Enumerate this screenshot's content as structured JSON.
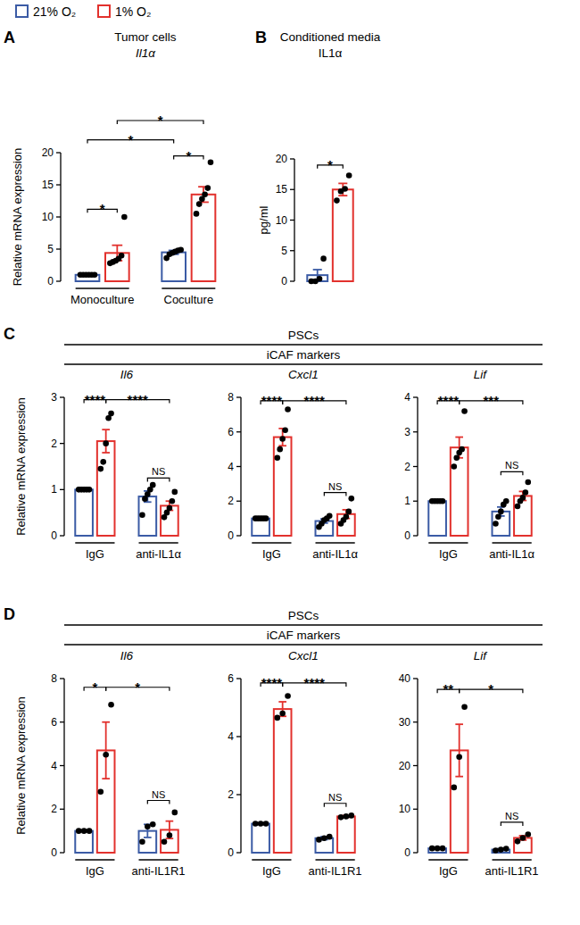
{
  "legend": [
    {
      "name": "21% O₂",
      "color": "#3b5ba5"
    },
    {
      "name": "1% O₂",
      "color": "#e2312d"
    }
  ],
  "panels": [
    {
      "letter": "A",
      "headings": [
        "Tumor cells"
      ]
    },
    {
      "letter": "B",
      "headings": [
        "Conditioned media"
      ]
    },
    {
      "letter": "C",
      "headings": [
        "PSCs",
        "iCAF markers"
      ]
    },
    {
      "letter": "D",
      "headings": [
        "PSCs",
        "iCAF markers"
      ]
    }
  ],
  "chart_data": [
    {
      "type": "bar",
      "title": "Il1α",
      "y_label": "Relative mRNA expression",
      "categories": [
        "Monoculture",
        "Coculture"
      ],
      "ylim": [
        0,
        20
      ],
      "yticks": [
        0,
        5,
        10,
        15,
        20
      ],
      "series": [
        {
          "color": "#3b5ba5",
          "values": [
            1.0,
            4.5
          ],
          "errors": [
            0,
            0.3
          ],
          "points": [
            [
              1,
              1,
              1,
              1,
              1,
              1
            ],
            [
              3.6,
              4.2,
              4.4,
              4.6,
              4.8,
              4.9
            ]
          ]
        },
        {
          "color": "#e2312d",
          "values": [
            4.4,
            13.5
          ],
          "errors": [
            1.2,
            1.2
          ],
          "points": [
            [
              2.8,
              3.0,
              3.2,
              3.5,
              4.0,
              10.0
            ],
            [
              10.5,
              12.0,
              12.8,
              13.5,
              14.5,
              18.5
            ]
          ]
        }
      ],
      "annotations": [
        {
          "text": "*",
          "from": [
            0,
            0
          ],
          "to": [
            0,
            1
          ],
          "y": 11.2
        },
        {
          "text": "*",
          "from": [
            1,
            0
          ],
          "to": [
            1,
            1
          ],
          "y": 19.5
        },
        {
          "text": "*",
          "from": [
            0,
            0
          ],
          "to": [
            1,
            0
          ],
          "y": 22
        },
        {
          "text": "*",
          "from": [
            0,
            1
          ],
          "to": [
            1,
            1
          ],
          "y": 25
        }
      ]
    },
    {
      "type": "bar",
      "title": "IL1α",
      "y_label": "pg/ml",
      "categories": [
        null
      ],
      "ylim": [
        0,
        20
      ],
      "yticks": [
        0,
        5,
        10,
        15,
        20
      ],
      "series": [
        {
          "color": "#3b5ba5",
          "values": [
            1.0
          ],
          "errors": [
            0.9
          ],
          "points": [
            [
              0,
              0,
              0.4,
              3.7
            ]
          ]
        },
        {
          "color": "#e2312d",
          "values": [
            15.0
          ],
          "errors": [
            1.0
          ],
          "points": [
            [
              13.2,
              14.7,
              15.1,
              17.3
            ]
          ]
        }
      ],
      "annotations": [
        {
          "text": "*",
          "from": [
            0,
            0
          ],
          "to": [
            0,
            1
          ],
          "y": 19
        }
      ]
    },
    {
      "type": "bar",
      "title": "Il6",
      "y_label": "Relative mRNA expression",
      "categories": [
        "IgG",
        "anti-IL1α"
      ],
      "ylim": [
        0,
        3
      ],
      "yticks": [
        0,
        1,
        2,
        3
      ],
      "series": [
        {
          "color": "#3b5ba5",
          "values": [
            1.0,
            0.85
          ],
          "errors": [
            0,
            0.12
          ],
          "points": [
            [
              1,
              1,
              1,
              1,
              1
            ],
            [
              0.45,
              0.8,
              0.9,
              1.0,
              1.1
            ]
          ]
        },
        {
          "color": "#e2312d",
          "values": [
            2.05,
            0.65
          ],
          "errors": [
            0.25,
            0.1
          ],
          "points": [
            [
              1.45,
              1.6,
              2.0,
              2.55,
              2.65
            ],
            [
              0.4,
              0.5,
              0.6,
              0.75,
              0.95
            ]
          ]
        }
      ],
      "annotations": [
        {
          "text": "****",
          "from": [
            0,
            0
          ],
          "to": [
            0,
            1
          ],
          "y": 2.95
        },
        {
          "text": "****",
          "from": [
            0,
            1
          ],
          "to": [
            1,
            1
          ],
          "y": 2.95
        },
        {
          "text": "NS",
          "from": [
            1,
            0
          ],
          "to": [
            1,
            1
          ],
          "y": 1.25
        }
      ]
    },
    {
      "type": "bar",
      "title": "Cxcl1",
      "categories": [
        "IgG",
        "anti-IL1α"
      ],
      "ylim": [
        0,
        8
      ],
      "yticks": [
        0,
        2,
        4,
        6,
        8
      ],
      "series": [
        {
          "color": "#3b5ba5",
          "values": [
            1.0,
            0.85
          ],
          "errors": [
            0,
            0.12
          ],
          "points": [
            [
              1,
              1,
              1,
              1,
              1
            ],
            [
              0.5,
              0.7,
              0.9,
              1.0,
              1.15
            ]
          ]
        },
        {
          "color": "#e2312d",
          "values": [
            5.7,
            1.25
          ],
          "errors": [
            0.5,
            0.25
          ],
          "points": [
            [
              4.5,
              5.0,
              5.6,
              6.1,
              7.3
            ],
            [
              0.7,
              0.9,
              1.1,
              1.4,
              2.15
            ]
          ]
        }
      ],
      "annotations": [
        {
          "text": "****",
          "from": [
            0,
            0
          ],
          "to": [
            0,
            1
          ],
          "y": 7.8
        },
        {
          "text": "****",
          "from": [
            0,
            1
          ],
          "to": [
            1,
            1
          ],
          "y": 7.8
        },
        {
          "text": "NS",
          "from": [
            1,
            0
          ],
          "to": [
            1,
            1
          ],
          "y": 2.5
        }
      ]
    },
    {
      "type": "bar",
      "title": "Lif",
      "categories": [
        "IgG",
        "anti-IL1α"
      ],
      "ylim": [
        0,
        4
      ],
      "yticks": [
        0,
        1,
        2,
        3,
        4
      ],
      "series": [
        {
          "color": "#3b5ba5",
          "values": [
            1.0,
            0.7
          ],
          "errors": [
            0,
            0.13
          ],
          "points": [
            [
              1,
              1,
              1,
              1,
              1
            ],
            [
              0.35,
              0.55,
              0.7,
              0.9,
              1.0
            ]
          ]
        },
        {
          "color": "#e2312d",
          "values": [
            2.55,
            1.15
          ],
          "errors": [
            0.3,
            0.13
          ],
          "points": [
            [
              2.0,
              2.25,
              2.4,
              2.5,
              3.6
            ],
            [
              0.85,
              1.0,
              1.1,
              1.25,
              1.55
            ]
          ]
        }
      ],
      "annotations": [
        {
          "text": "****",
          "from": [
            0,
            0
          ],
          "to": [
            0,
            1
          ],
          "y": 3.9
        },
        {
          "text": "***",
          "from": [
            0,
            1
          ],
          "to": [
            1,
            1
          ],
          "y": 3.9
        },
        {
          "text": "NS",
          "from": [
            1,
            0
          ],
          "to": [
            1,
            1
          ],
          "y": 1.85
        }
      ]
    },
    {
      "type": "bar",
      "title": "Il6",
      "y_label": "Relative mRNA expression",
      "categories": [
        "IgG",
        "anti-IL1R1"
      ],
      "ylim": [
        0,
        8
      ],
      "yticks": [
        0,
        2,
        4,
        6,
        8
      ],
      "series": [
        {
          "color": "#3b5ba5",
          "values": [
            1.0,
            1.0
          ],
          "errors": [
            0,
            0.3
          ],
          "points": [
            [
              1,
              1,
              1
            ],
            [
              0.5,
              1.2,
              1.3
            ]
          ]
        },
        {
          "color": "#e2312d",
          "values": [
            4.7,
            1.05
          ],
          "errors": [
            1.3,
            0.4
          ],
          "points": [
            [
              2.8,
              4.5,
              6.8
            ],
            [
              0.5,
              0.8,
              1.85
            ]
          ]
        }
      ],
      "annotations": [
        {
          "text": "*",
          "from": [
            0,
            0
          ],
          "to": [
            0,
            1
          ],
          "y": 7.6
        },
        {
          "text": "*",
          "from": [
            0,
            1
          ],
          "to": [
            1,
            1
          ],
          "y": 7.6
        },
        {
          "text": "NS",
          "from": [
            1,
            0
          ],
          "to": [
            1,
            1
          ],
          "y": 2.4
        }
      ]
    },
    {
      "type": "bar",
      "title": "Cxcl1",
      "categories": [
        "IgG",
        "anti-IL1R1"
      ],
      "ylim": [
        0,
        6
      ],
      "yticks": [
        0,
        2,
        4,
        6
      ],
      "series": [
        {
          "color": "#3b5ba5",
          "values": [
            1.0,
            0.5
          ],
          "errors": [
            0,
            0.05
          ],
          "points": [
            [
              1,
              1,
              1
            ],
            [
              0.45,
              0.5,
              0.55
            ]
          ]
        },
        {
          "color": "#e2312d",
          "values": [
            4.95,
            1.25
          ],
          "errors": [
            0.25,
            0.03
          ],
          "points": [
            [
              4.65,
              4.8,
              5.4
            ],
            [
              1.22,
              1.25,
              1.28
            ]
          ]
        }
      ],
      "annotations": [
        {
          "text": "****",
          "from": [
            0,
            0
          ],
          "to": [
            0,
            1
          ],
          "y": 5.85
        },
        {
          "text": "****",
          "from": [
            0,
            1
          ],
          "to": [
            1,
            1
          ],
          "y": 5.85
        },
        {
          "text": "NS",
          "from": [
            1,
            0
          ],
          "to": [
            1,
            1
          ],
          "y": 1.7
        }
      ]
    },
    {
      "type": "bar",
      "title": "Lif",
      "categories": [
        "IgG",
        "anti-IL1R1"
      ],
      "ylim": [
        0,
        40
      ],
      "yticks": [
        0,
        10,
        20,
        30,
        40
      ],
      "series": [
        {
          "color": "#3b5ba5",
          "values": [
            1.0,
            0.7
          ],
          "errors": [
            0,
            0.2
          ],
          "points": [
            [
              1,
              1,
              1
            ],
            [
              0.5,
              0.7,
              0.9
            ]
          ]
        },
        {
          "color": "#e2312d",
          "values": [
            23.5,
            3.4
          ],
          "errors": [
            6.0,
            0.5
          ],
          "points": [
            [
              15,
              22,
              33.5
            ],
            [
              2.6,
              3.4,
              4.2
            ]
          ]
        }
      ],
      "annotations": [
        {
          "text": "**",
          "from": [
            0,
            0
          ],
          "to": [
            0,
            1
          ],
          "y": 37.5
        },
        {
          "text": "*",
          "from": [
            0,
            1
          ],
          "to": [
            1,
            1
          ],
          "y": 37.5
        },
        {
          "text": "NS",
          "from": [
            1,
            0
          ],
          "to": [
            1,
            1
          ],
          "y": 7
        }
      ]
    }
  ]
}
